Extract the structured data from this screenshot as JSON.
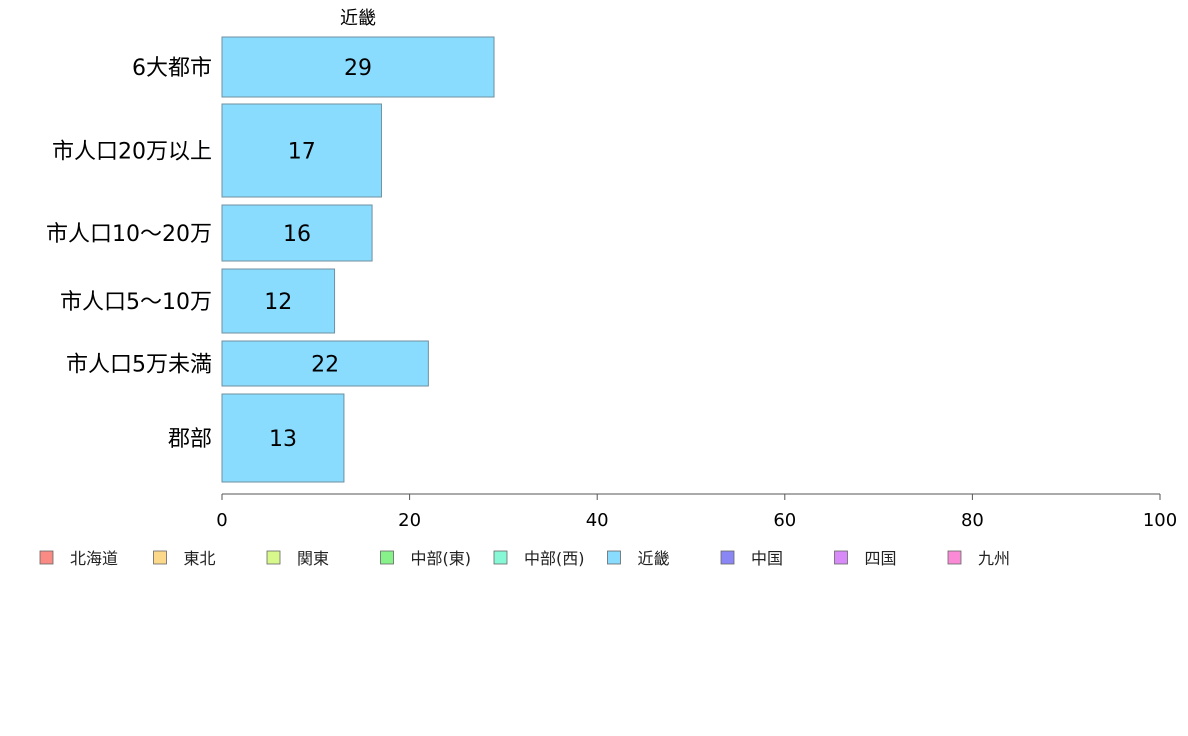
{
  "chart_data": {
    "type": "bar",
    "orientation": "horizontal",
    "title": "近畿",
    "categories": [
      "6大都市",
      "市人口20万以上",
      "市人口10〜20万",
      "市人口5〜10万",
      "市人口5万未満",
      "郡部"
    ],
    "values": [
      29,
      17,
      16,
      12,
      22,
      13
    ],
    "xlim": [
      0,
      100
    ],
    "xticks": [
      0,
      20,
      40,
      60,
      80,
      100
    ],
    "bar_color": "#89dcfe",
    "grid": false,
    "legend_position": "bottom",
    "legend": [
      {
        "label": "北海道",
        "color": "#f98b84"
      },
      {
        "label": "東北",
        "color": "#fcd98a"
      },
      {
        "label": "関東",
        "color": "#d7f88a"
      },
      {
        "label": "中部(東)",
        "color": "#88f28a"
      },
      {
        "label": "中部(西)",
        "color": "#86f8d6"
      },
      {
        "label": "近畿",
        "color": "#89dcfe"
      },
      {
        "label": "中国",
        "color": "#8a86f6"
      },
      {
        "label": "四国",
        "color": "#d78af8"
      },
      {
        "label": "九州",
        "color": "#fa8ad6"
      }
    ]
  }
}
